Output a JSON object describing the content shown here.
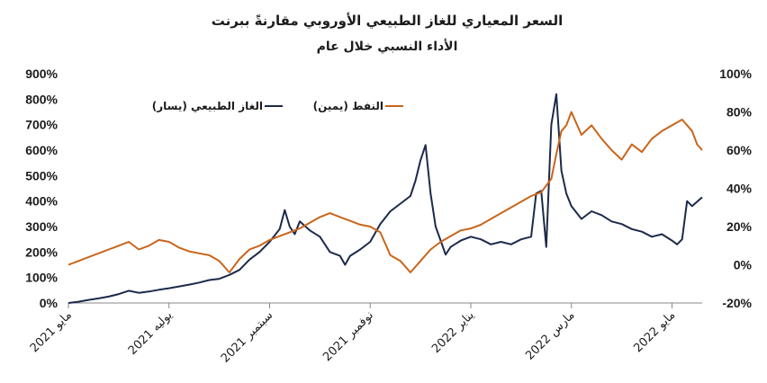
{
  "title": "السعر المعياري للغاز الطبيعي الأوروبي مقارنةً ببرنت",
  "subtitle": "الأداء النسبي خلال عام",
  "colors": {
    "gas": "#1c2a4a",
    "oil": "#c8651b",
    "axis": "#888888"
  },
  "chart_data": {
    "type": "line",
    "title": "السعر المعياري للغاز الطبيعي الأوروبي مقارنةً ببرنت",
    "subtitle": "الأداء النسبي خلال عام",
    "x_range": [
      0,
      12.6
    ],
    "x_ticks": [
      {
        "pos": 0,
        "label": "مايو 2021"
      },
      {
        "pos": 2,
        "label": "يوليه 2021"
      },
      {
        "pos": 4,
        "label": "سبتمبر 2021"
      },
      {
        "pos": 6,
        "label": "نوفمبر 2021"
      },
      {
        "pos": 8,
        "label": "يناير 2022"
      },
      {
        "pos": 10,
        "label": "مارس 2022"
      },
      {
        "pos": 12,
        "label": "مايو 2022"
      }
    ],
    "y_left": {
      "min": 0,
      "max": 900,
      "ticks": [
        "0%",
        "100%",
        "200%",
        "300%",
        "400%",
        "500%",
        "600%",
        "700%",
        "800%",
        "900%"
      ]
    },
    "y_right": {
      "min": -20,
      "max": 100,
      "ticks": [
        "-20%",
        "0%",
        "20%",
        "40%",
        "60%",
        "80%",
        "100%"
      ]
    },
    "legend_position": "top",
    "series": [
      {
        "name": "الغاز الطبيعي (يسار)",
        "axis": "left",
        "color": "#1c2a4a",
        "x": [
          0,
          0.2,
          0.4,
          0.6,
          0.8,
          1.0,
          1.2,
          1.4,
          1.6,
          1.8,
          2.0,
          2.2,
          2.4,
          2.6,
          2.8,
          3.0,
          3.2,
          3.4,
          3.6,
          3.8,
          4.0,
          4.2,
          4.3,
          4.4,
          4.5,
          4.6,
          4.8,
          5.0,
          5.2,
          5.4,
          5.5,
          5.6,
          5.8,
          6.0,
          6.2,
          6.4,
          6.6,
          6.8,
          6.9,
          7.0,
          7.1,
          7.2,
          7.3,
          7.4,
          7.5,
          7.6,
          7.8,
          8.0,
          8.2,
          8.4,
          8.6,
          8.8,
          9.0,
          9.2,
          9.3,
          9.4,
          9.5,
          9.6,
          9.7,
          9.8,
          9.9,
          10.0,
          10.2,
          10.4,
          10.6,
          10.8,
          11.0,
          11.2,
          11.4,
          11.6,
          11.8,
          12.0,
          12.1,
          12.2,
          12.3,
          12.4,
          12.6
        ],
        "values": [
          0,
          5,
          12,
          18,
          25,
          35,
          48,
          40,
          45,
          52,
          58,
          65,
          72,
          80,
          90,
          95,
          110,
          130,
          170,
          200,
          240,
          290,
          365,
          300,
          270,
          320,
          285,
          260,
          200,
          185,
          150,
          185,
          210,
          240,
          310,
          360,
          390,
          420,
          480,
          560,
          620,
          430,
          300,
          245,
          190,
          220,
          245,
          260,
          250,
          230,
          240,
          230,
          250,
          260,
          430,
          440,
          220,
          700,
          820,
          520,
          430,
          380,
          330,
          360,
          345,
          320,
          310,
          290,
          280,
          260,
          270,
          245,
          230,
          250,
          400,
          380,
          415
        ]
      },
      {
        "name": "النفط (يمين)",
        "axis": "right",
        "color": "#c8651b",
        "x": [
          0,
          0.2,
          0.4,
          0.6,
          0.8,
          1.0,
          1.2,
          1.4,
          1.6,
          1.8,
          2.0,
          2.2,
          2.4,
          2.6,
          2.8,
          3.0,
          3.2,
          3.4,
          3.6,
          3.8,
          4.0,
          4.2,
          4.4,
          4.6,
          4.8,
          5.0,
          5.2,
          5.4,
          5.6,
          5.8,
          6.0,
          6.2,
          6.4,
          6.6,
          6.8,
          7.0,
          7.2,
          7.4,
          7.6,
          7.8,
          8.0,
          8.2,
          8.4,
          8.6,
          8.8,
          9.0,
          9.2,
          9.4,
          9.6,
          9.7,
          9.8,
          9.9,
          10.0,
          10.2,
          10.4,
          10.6,
          10.8,
          11.0,
          11.2,
          11.4,
          11.6,
          11.8,
          12.0,
          12.2,
          12.4,
          12.5,
          12.6
        ],
        "values": [
          0,
          2,
          4,
          6,
          8,
          10,
          12,
          8,
          10,
          13,
          12,
          9,
          7,
          6,
          5,
          2,
          -4,
          3,
          8,
          10,
          13,
          15,
          17,
          19,
          22,
          25,
          27,
          25,
          23,
          21,
          20,
          17,
          5,
          2,
          -4,
          2,
          8,
          12,
          15,
          18,
          19,
          21,
          24,
          27,
          30,
          33,
          36,
          38,
          45,
          58,
          70,
          73,
          80,
          68,
          73,
          66,
          60,
          55,
          63,
          59,
          66,
          70,
          73,
          76,
          70,
          63,
          60
        ]
      }
    ]
  }
}
